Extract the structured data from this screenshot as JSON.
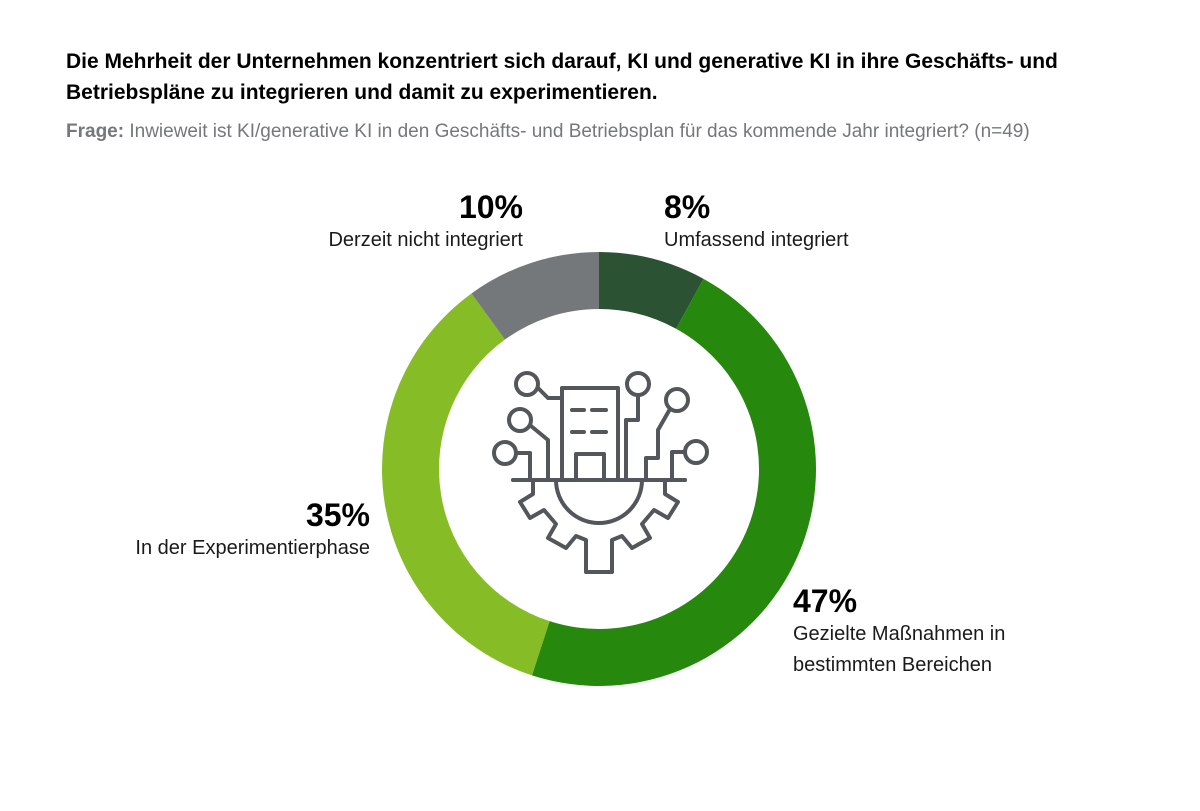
{
  "header": {
    "title": "Die Mehrheit der Unternehmen konzentriert sich darauf, KI und generative KI in ihre Geschäfts- und Betriebspläne zu integrieren und damit zu experimentieren.",
    "question_label": "Frage:",
    "question_text": "Inwieweit ist KI/generative KI in den Geschäfts- und Betriebsplan für das kommende Jahr integriert? (n=49)"
  },
  "center_icon": "building-gear-network-icon",
  "chart_data": {
    "type": "pie",
    "style": "donut",
    "start": "top, clockwise",
    "slices": [
      {
        "label": "Umfassend integriert",
        "value": 8,
        "display": "8%",
        "color": "#2c5234"
      },
      {
        "label": "Gezielte Maßnahmen in bestimmten Bereichen",
        "label_lines": [
          "Gezielte Maßnahmen in",
          "bestimmten Bereichen"
        ],
        "value": 47,
        "display": "47%",
        "color": "#26890d"
      },
      {
        "label": "In der Experimentierphase",
        "value": 35,
        "display": "35%",
        "color": "#86bc25"
      },
      {
        "label": "Derzeit nicht integriert",
        "value": 10,
        "display": "10%",
        "color": "#75787b"
      }
    ]
  }
}
